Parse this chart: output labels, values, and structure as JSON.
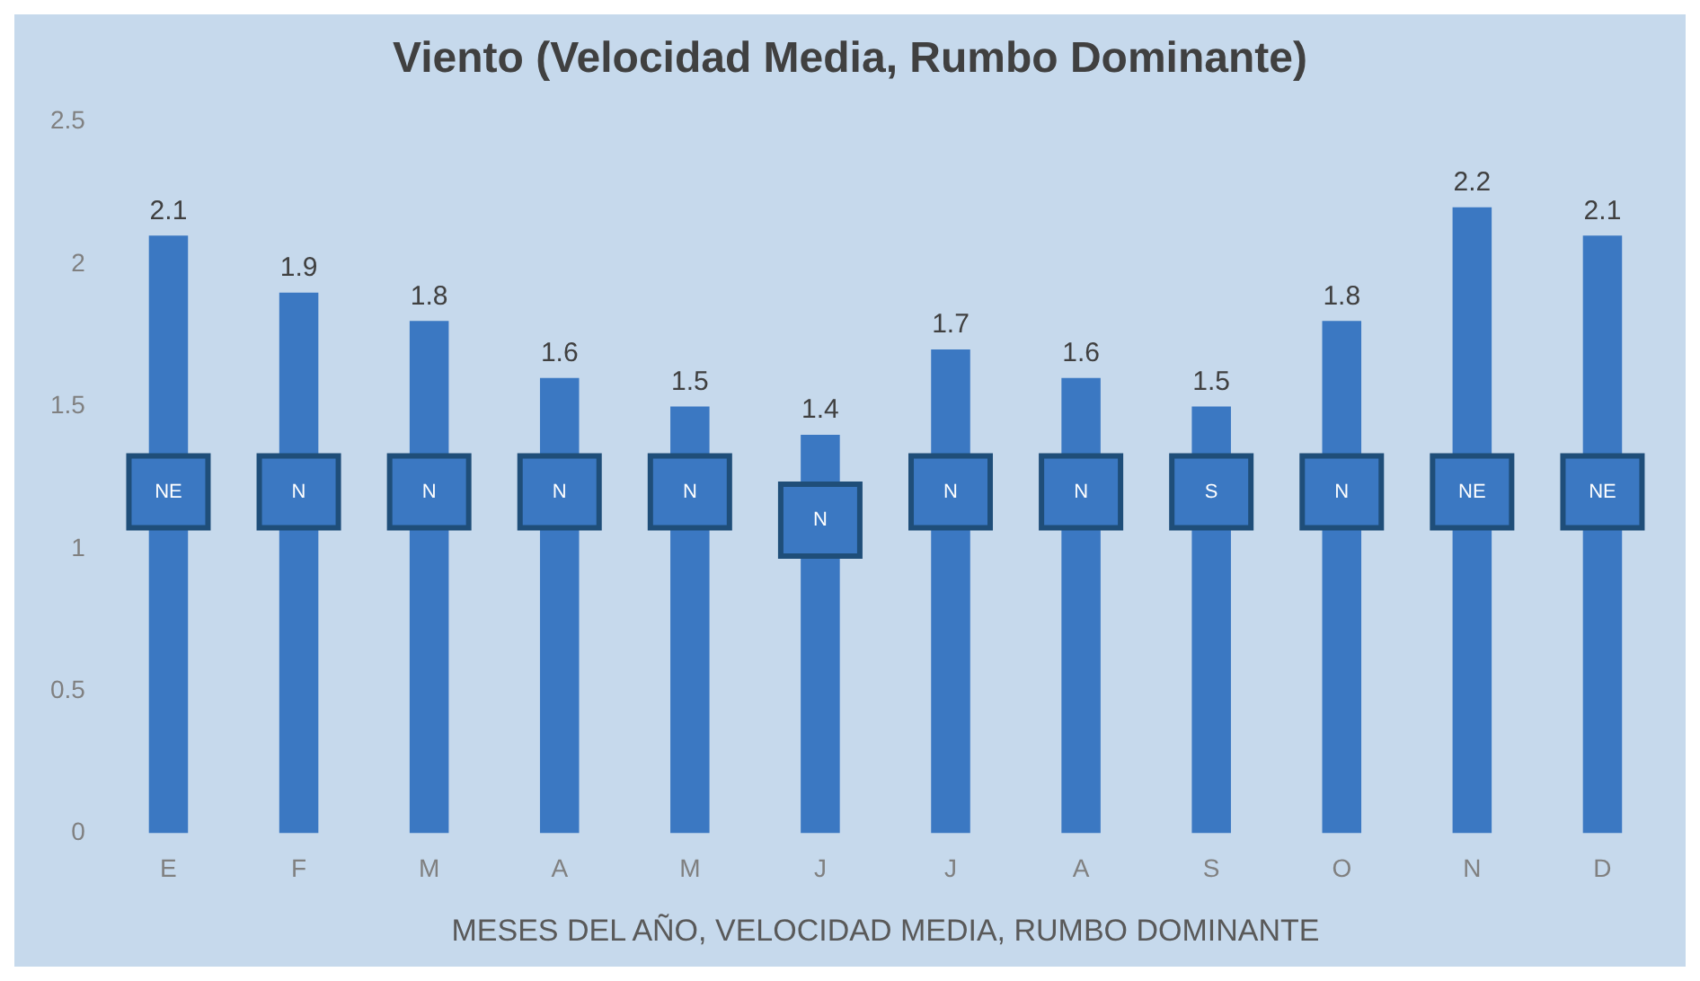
{
  "chart_data": {
    "type": "bar",
    "title": "Viento (Velocidad Media, Rumbo Dominante)",
    "xlabel": "MESES DEL AÑO, VELOCIDAD MEDIA, RUMBO DOMINANTE",
    "categories": [
      "E",
      "F",
      "M",
      "A",
      "M",
      "J",
      "J",
      "A",
      "S",
      "O",
      "N",
      "D"
    ],
    "values": [
      2.1,
      1.9,
      1.8,
      1.6,
      1.5,
      1.4,
      1.7,
      1.6,
      1.5,
      1.8,
      2.2,
      2.1
    ],
    "color": "#3b78c2",
    "ylim": [
      0,
      2.5
    ],
    "yticks": [
      0,
      0.5,
      1,
      1.5,
      2,
      2.5
    ],
    "grid": false,
    "legend": false,
    "data_labels": true,
    "annotations": [
      {
        "text": "NE",
        "y": 1.2
      },
      {
        "text": "N",
        "y": 1.2
      },
      {
        "text": "N",
        "y": 1.2
      },
      {
        "text": "N",
        "y": 1.2
      },
      {
        "text": "N",
        "y": 1.2
      },
      {
        "text": "N",
        "y": 1.1
      },
      {
        "text": "N",
        "y": 1.2
      },
      {
        "text": "N",
        "y": 1.2
      },
      {
        "text": "S",
        "y": 1.2
      },
      {
        "text": "N",
        "y": 1.2
      },
      {
        "text": "NE",
        "y": 1.2
      },
      {
        "text": "NE",
        "y": 1.2
      }
    ]
  }
}
